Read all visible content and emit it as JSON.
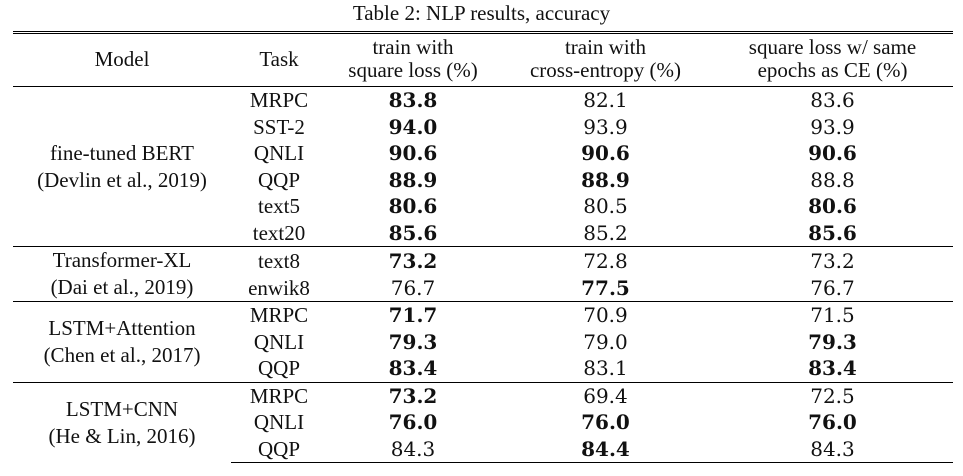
{
  "caption": "Table 2: NLP results, accuracy",
  "headers": {
    "model": "Model",
    "task": "Task",
    "square_l1": "train with",
    "square_l2": "square loss (%)",
    "ce_l1": "train with",
    "ce_l2": "cross-entropy (%)",
    "same_l1": "square loss w/ same",
    "same_l2": "epochs as CE (%)"
  },
  "groups": [
    {
      "model_line1": "fine-tuned BERT",
      "model_line2": "(Devlin et al., 2019)",
      "rows": [
        {
          "task": "MRPC",
          "square": "83.8",
          "ce": "82.1",
          "same": "83.6",
          "bold": [
            "square"
          ]
        },
        {
          "task": "SST-2",
          "square": "94.0",
          "ce": "93.9",
          "same": "93.9",
          "bold": [
            "square"
          ]
        },
        {
          "task": "QNLI",
          "square": "90.6",
          "ce": "90.6",
          "same": "90.6",
          "bold": [
            "square",
            "ce",
            "same"
          ]
        },
        {
          "task": "QQP",
          "square": "88.9",
          "ce": "88.9",
          "same": "88.8",
          "bold": [
            "square",
            "ce"
          ]
        },
        {
          "task": "text5",
          "square": "80.6",
          "ce": "80.5",
          "same": "80.6",
          "bold": [
            "square",
            "same"
          ]
        },
        {
          "task": "text20",
          "square": "85.6",
          "ce": "85.2",
          "same": "85.6",
          "bold": [
            "square",
            "same"
          ]
        }
      ]
    },
    {
      "model_line1": "Transformer-XL",
      "model_line2": "(Dai et al., 2019)",
      "rows": [
        {
          "task": "text8",
          "square": "73.2",
          "ce": "72.8",
          "same": "73.2",
          "bold": [
            "square"
          ]
        },
        {
          "task": "enwik8",
          "square": "76.7",
          "ce": "77.5",
          "same": "76.7",
          "bold": [
            "ce"
          ]
        }
      ]
    },
    {
      "model_line1": "LSTM+Attention",
      "model_line2": "(Chen et al., 2017)",
      "rows": [
        {
          "task": "MRPC",
          "square": "71.7",
          "ce": "70.9",
          "same": "71.5",
          "bold": [
            "square"
          ]
        },
        {
          "task": "QNLI",
          "square": "79.3",
          "ce": "79.0",
          "same": "79.3",
          "bold": [
            "square",
            "same"
          ]
        },
        {
          "task": "QQP",
          "square": "83.4",
          "ce": "83.1",
          "same": "83.4",
          "bold": [
            "square",
            "same"
          ]
        }
      ]
    },
    {
      "model_line1": "LSTM+CNN",
      "model_line2": "(He & Lin, 2016)",
      "rows": [
        {
          "task": "MRPC",
          "square": "73.2",
          "ce": "69.4",
          "same": "72.5",
          "bold": [
            "square"
          ]
        },
        {
          "task": "QNLI",
          "square": "76.0",
          "ce": "76.0",
          "same": "76.0",
          "bold": [
            "square",
            "ce",
            "same"
          ]
        },
        {
          "task": "QQP",
          "square": "84.3",
          "ce": "84.4",
          "same": "84.3",
          "bold": [
            "ce"
          ]
        }
      ]
    }
  ]
}
